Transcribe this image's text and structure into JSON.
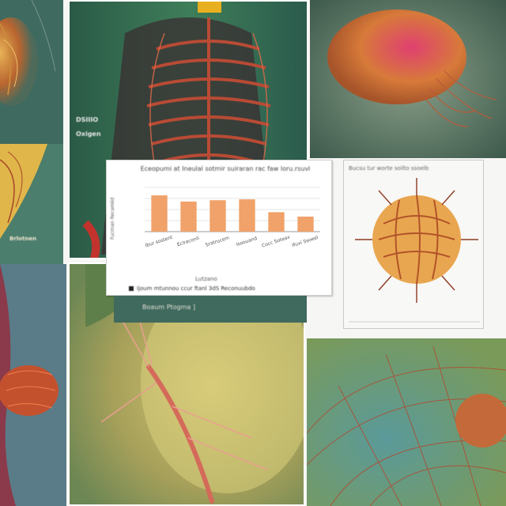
{
  "collage": {
    "panels": {
      "top_left": {
        "label": "anatomy-panel"
      },
      "torso": {
        "label_line1": "DSIIIO",
        "label_line2": "Oxigen"
      },
      "left_mid": {
        "label": "Brlotnen"
      },
      "caption": {
        "text": "Boaum   Ptogma  ]"
      },
      "urchin": {
        "title": "Bucsu tur worte   soilto   ssoelb"
      }
    }
  },
  "chart_data": {
    "type": "bar",
    "title": "Eceopumi at Ineulal sotmir suiraran rac faw loru.rsuvl",
    "ylabel": "Fucrnan Recamiid",
    "xlabel": "Lutzano",
    "legend": "Ijoum mtunnou ccur ftanl 3dS Reconuubdo",
    "categories": [
      "Ibur sostent",
      "Eclraconli",
      "Sratrucem",
      "Isoouand",
      "Cocc Soteax",
      "Ifuxi Ssoeel"
    ],
    "values": [
      8.2,
      6.8,
      7.1,
      7.3,
      4.4,
      3.4
    ],
    "ylim": [
      0,
      10
    ],
    "bar_color": "#f0a26a",
    "grid": true
  }
}
